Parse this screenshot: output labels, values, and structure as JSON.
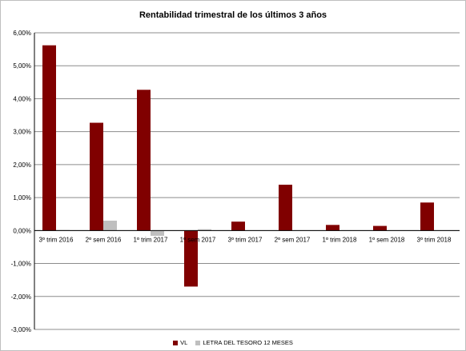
{
  "chart_data": {
    "type": "bar",
    "title": "Rentabilidad trimestral de los últimos 3 años",
    "categories": [
      "3º trim 2016",
      "2º sem 2016",
      "1º trim 2017",
      "1º sem 2017",
      "3º trim 2017",
      "2º sem 2017",
      "1º trim 2018",
      "1º sem 2018",
      "3º trim 2018"
    ],
    "series": [
      {
        "name": "VL",
        "color": "#800000",
        "values": [
          5.62,
          3.27,
          4.27,
          -1.7,
          0.27,
          1.39,
          0.17,
          0.14,
          0.85
        ]
      },
      {
        "name": "LETRA DEL TESORO 12 MESES",
        "color": "#bfbfbf",
        "values": [
          0.02,
          0.3,
          -0.16,
          0.04,
          0.0,
          0.0,
          0.0,
          0.0,
          0.0
        ]
      }
    ],
    "ylim": [
      -3,
      6
    ],
    "yticks": [
      6,
      5,
      4,
      3,
      2,
      1,
      0,
      -1,
      -2,
      -3
    ],
    "ytick_labels": [
      "6,00%",
      "5,00%",
      "4,00%",
      "3,00%",
      "2,00%",
      "1,00%",
      "0,00%",
      "-1,00%",
      "-2,00%",
      "-3,00%"
    ],
    "grid": true,
    "legend_position": "bottom"
  }
}
